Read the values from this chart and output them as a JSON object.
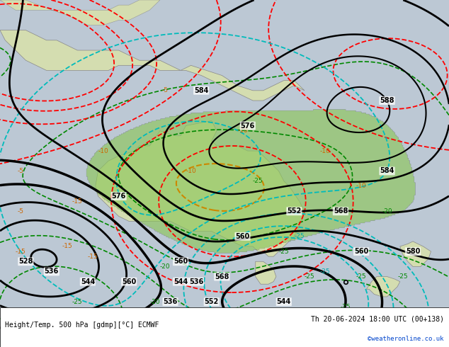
{
  "title_left": "Height/Temp. 500 hPa [gdmp][°C] ECMWF",
  "title_right": "Th 20-06-2024 18:00 UTC (00+138)",
  "copyright": "©weatheronline.co.uk",
  "figsize": [
    6.34,
    4.9
  ],
  "dpi": 100,
  "lon_min": 95,
  "lon_max": 182,
  "lat_min": -57,
  "lat_max": 12
}
